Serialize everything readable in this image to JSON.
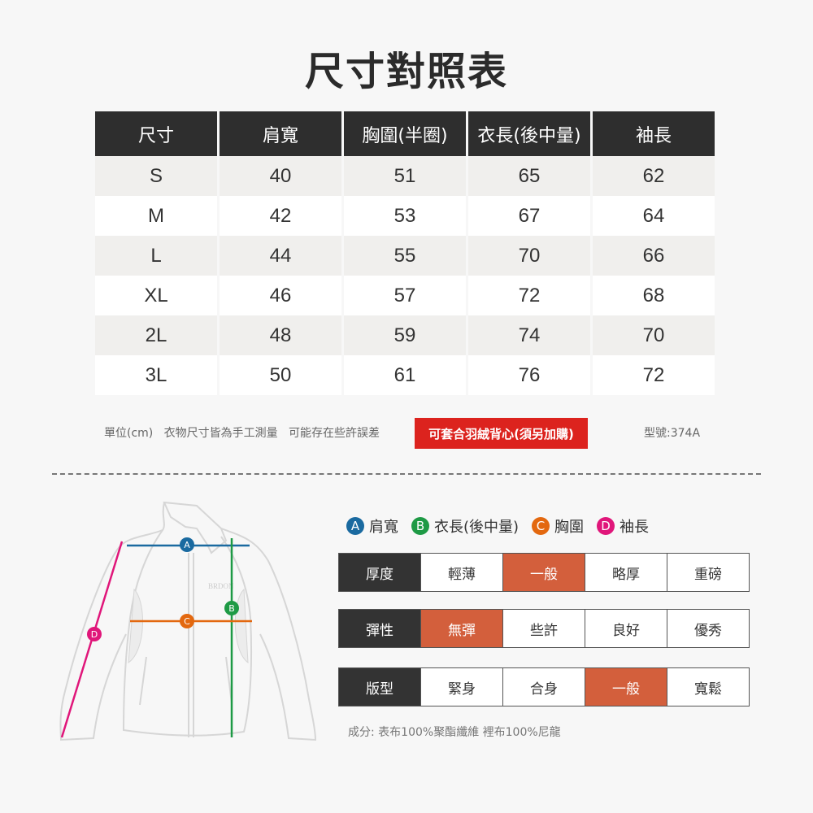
{
  "title": "尺寸對照表",
  "size_table": {
    "headers": [
      "尺寸",
      "肩寬",
      "胸圍(半圈)",
      "衣長(後中量)",
      "袖長"
    ],
    "rows": [
      [
        "S",
        "40",
        "51",
        "65",
        "62"
      ],
      [
        "M",
        "42",
        "53",
        "67",
        "64"
      ],
      [
        "L",
        "44",
        "55",
        "70",
        "66"
      ],
      [
        "XL",
        "46",
        "57",
        "72",
        "68"
      ],
      [
        "2L",
        "48",
        "59",
        "74",
        "70"
      ],
      [
        "3L",
        "50",
        "61",
        "76",
        "72"
      ]
    ]
  },
  "notes": "單位(cm)   衣物尺寸皆為手工測量   可能存在些許誤差",
  "promo_label": "可套合羽絨背心(須另加購)",
  "model": "型號:374A",
  "legend": [
    {
      "letter": "A",
      "label": "肩寬",
      "color": "#1a6aa0"
    },
    {
      "letter": "B",
      "label": "衣長(後中量)",
      "color": "#1e9a45"
    },
    {
      "letter": "C",
      "label": "胸圍",
      "color": "#e3680f"
    },
    {
      "letter": "D",
      "label": "袖長",
      "color": "#e0167a"
    }
  ],
  "ratings": [
    {
      "label": "厚度",
      "options": [
        "輕薄",
        "一般",
        "略厚",
        "重磅"
      ],
      "selected": 1
    },
    {
      "label": "彈性",
      "options": [
        "無彈",
        "些許",
        "良好",
        "優秀"
      ],
      "selected": 0
    },
    {
      "label": "版型",
      "options": [
        "緊身",
        "合身",
        "一般",
        "寬鬆"
      ],
      "selected": 2
    }
  ],
  "selected_color": "#d35f3c",
  "composition": "成分: 表布100%聚酯纖維  裡布100%尼龍",
  "jacket_logo": "BRDON"
}
